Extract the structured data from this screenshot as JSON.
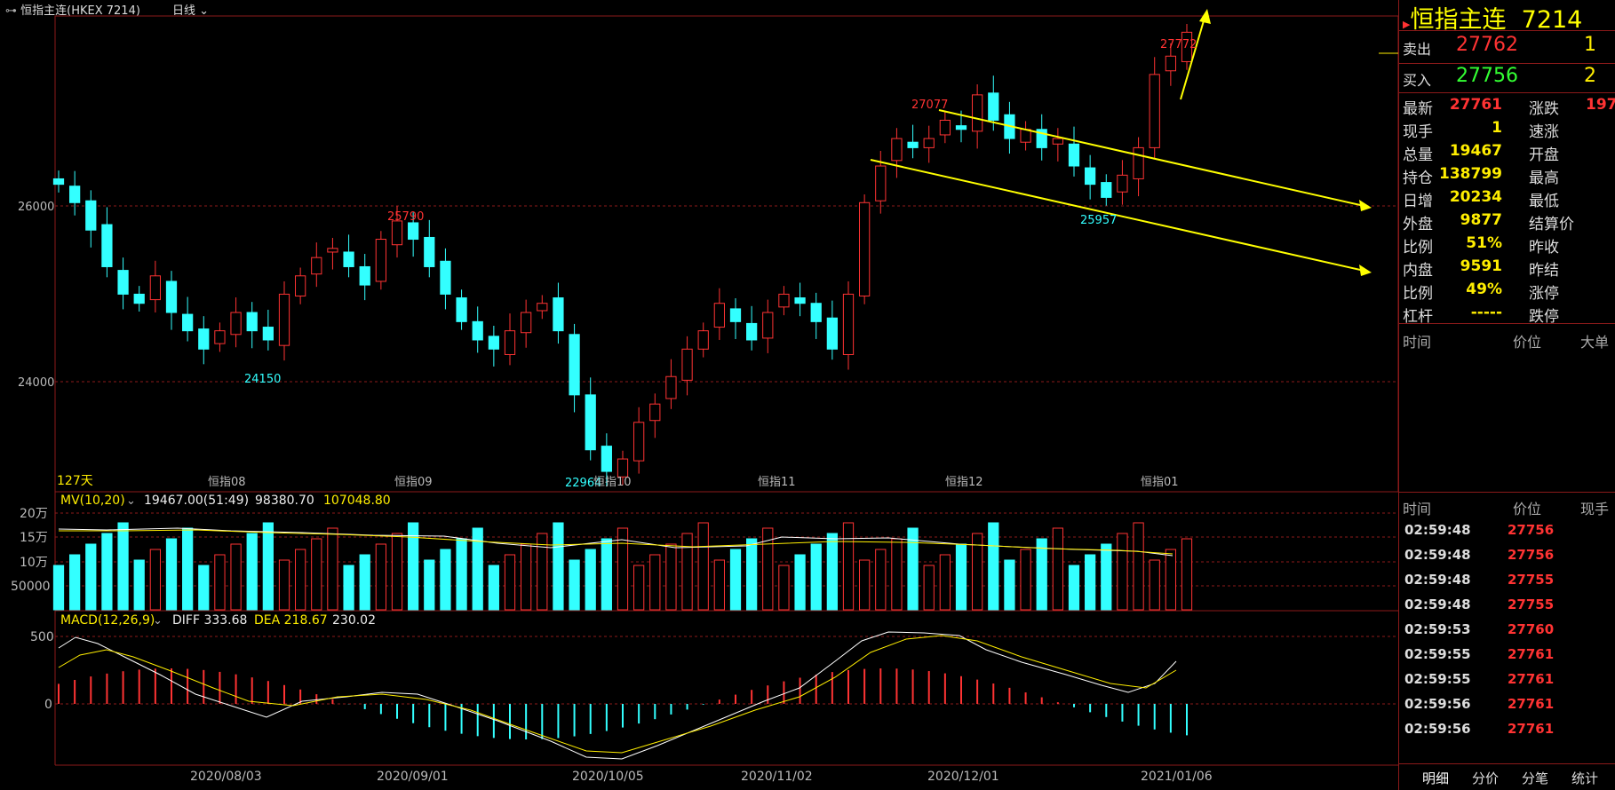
{
  "window": {
    "title": "恒指主连(HKEX 7214)",
    "period": "日线"
  },
  "price_axis": {
    "labels": [
      "26000",
      "24000"
    ]
  },
  "main_annotations": {
    "days": "127天",
    "high_mark": "27772",
    "mid_high": "27077",
    "mid_low": "25957",
    "aug_high": "25790",
    "aug_low": "24150",
    "oct_low": "22964"
  },
  "month_markers": [
    "恒指08",
    "恒指09",
    "恒指10",
    "恒指11",
    "恒指12",
    "恒指01"
  ],
  "volume": {
    "indicator": "MV(10,20)",
    "vol": "19467.00(51:49)",
    "ma10": "98380.70",
    "ma20": "107048.80",
    "axis_labels": [
      "20万",
      "15万",
      "10万",
      "50000"
    ]
  },
  "macd": {
    "indicator": "MACD(12,26,9)",
    "diff": "DIFF 333.68",
    "dea": "DEA 218.67",
    "macd": "230.02",
    "axis_labels": [
      "500",
      "0"
    ]
  },
  "date_axis": [
    "2020/08/03",
    "2020/09/01",
    "2020/10/05",
    "2020/11/02",
    "2020/12/01",
    "2021/01/06"
  ],
  "quote": {
    "name": "恒指主连",
    "code": "7214",
    "sell_label": "卖出",
    "sell_price": "27762",
    "sell_qty": "1",
    "buy_label": "买入",
    "buy_price": "27756",
    "buy_qty": "2",
    "rows": [
      {
        "l1": "最新",
        "v1": "27761",
        "c1": "#ff3333",
        "l2": "涨跌",
        "v2": "197"
      },
      {
        "l1": "现手",
        "v1": "1",
        "c1": "#ffee00",
        "l2": "速涨",
        "v2": ""
      },
      {
        "l1": "总量",
        "v1": "19467",
        "c1": "#ffee00",
        "l2": "开盘",
        "v2": ""
      },
      {
        "l1": "持仓",
        "v1": "138799",
        "c1": "#ffee00",
        "l2": "最高",
        "v2": ""
      },
      {
        "l1": "日增",
        "v1": "20234",
        "c1": "#ffee00",
        "l2": "最低",
        "v2": ""
      },
      {
        "l1": "外盘",
        "v1": "9877",
        "c1": "#ffee00",
        "l2": "结算价",
        "v2": ""
      },
      {
        "l1": "比例",
        "v1": "51%",
        "c1": "#ffee00",
        "l2": "昨收",
        "v2": ""
      },
      {
        "l1": "内盘",
        "v1": "9591",
        "c1": "#ffee00",
        "l2": "昨结",
        "v2": ""
      },
      {
        "l1": "比例",
        "v1": "49%",
        "c1": "#ffee00",
        "l2": "涨停",
        "v2": ""
      },
      {
        "l1": "杠杆",
        "v1": "-----",
        "c1": "#ffee00",
        "l2": "跌停",
        "v2": ""
      }
    ]
  },
  "big_table_header": {
    "time": "时间",
    "price": "价位",
    "big": "大单"
  },
  "ticks_header": {
    "time": "时间",
    "price": "价位",
    "hand": "现手"
  },
  "ticks": [
    {
      "time": "02:59:48",
      "price": "27756"
    },
    {
      "time": "02:59:48",
      "price": "27756"
    },
    {
      "time": "02:59:48",
      "price": "27755"
    },
    {
      "time": "02:59:48",
      "price": "27755"
    },
    {
      "time": "02:59:53",
      "price": "27760"
    },
    {
      "time": "02:59:55",
      "price": "27761"
    },
    {
      "time": "02:59:55",
      "price": "27761"
    },
    {
      "time": "02:59:56",
      "price": "27761"
    },
    {
      "time": "02:59:56",
      "price": "27761"
    }
  ],
  "tabs": [
    "明细",
    "分价",
    "分笔",
    "统计"
  ],
  "colors": {
    "up": "#ff3333",
    "down": "#33ffff",
    "ma_white": "#ffffff",
    "ma_yellow": "#ffee00",
    "grid": "#8b1a1a",
    "trend": "#ffff00"
  },
  "chart_data": {
    "type": "candlestick",
    "title": "恒指主连(HKEX 7214) 日线",
    "x_range": [
      "2020/07/06",
      "2021/01/07"
    ],
    "y_range": [
      22800,
      27900
    ],
    "candles_approx_close": [
      26100,
      25900,
      25600,
      25200,
      24900,
      24800,
      25100,
      24700,
      24500,
      24300,
      24500,
      24700,
      24500,
      24400,
      24900,
      25100,
      25300,
      25400,
      25200,
      25000,
      25500,
      25700,
      25500,
      25200,
      24900,
      24600,
      24400,
      24300,
      24500,
      24700,
      24800,
      24500,
      23800,
      23200,
      22964,
      23100,
      23500,
      23700,
      24000,
      24300,
      24500,
      24800,
      24600,
      24400,
      24700,
      24900,
      24800,
      24600,
      24300,
      24900,
      25900,
      26300,
      26600,
      26500,
      26600,
      26800,
      26700,
      27077,
      26800,
      26600,
      26700,
      26500,
      26600,
      26300,
      26100,
      25957,
      26200,
      26500,
      27300,
      27500,
      27761
    ],
    "volume_axis": [
      "20万",
      "15万",
      "10万",
      "50000"
    ],
    "macd_axis": [
      "500",
      "0"
    ]
  }
}
